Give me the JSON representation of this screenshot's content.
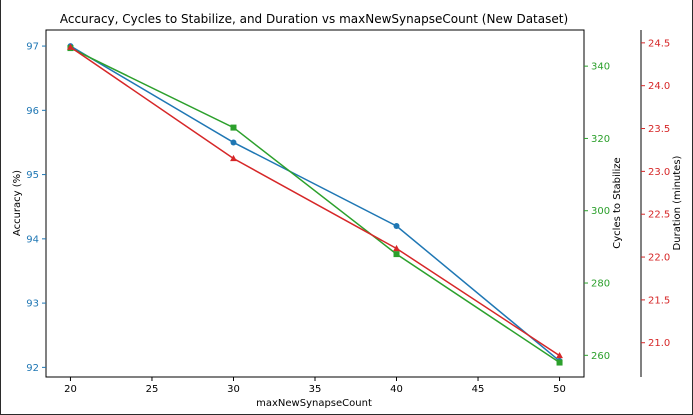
{
  "chart_data": {
    "type": "line",
    "title": "Accuracy, Cycles to Stabilize, and Duration vs maxNewSynapseCount (New Dataset)",
    "xlabel": "maxNewSynapseCount",
    "x": [
      20,
      30,
      40,
      50
    ],
    "xlim": [
      18.5,
      51.5
    ],
    "xticks": [
      20,
      25,
      30,
      35,
      40,
      45,
      50
    ],
    "grid": false,
    "legend": "none",
    "axes": [
      {
        "id": "accuracy",
        "label": "Accuracy (%)",
        "side": "left",
        "color": "#1f77b4",
        "ylim": [
          91.85,
          97.25
        ],
        "ticks": [
          92,
          93,
          94,
          95,
          96,
          97
        ],
        "marker": "circle",
        "values": [
          97.0,
          95.5,
          94.2,
          92.1
        ]
      },
      {
        "id": "cycles",
        "label": "Cycles to Stabilize",
        "side": "right",
        "color": "#2ca02c",
        "ylim": [
          254.0,
          350.0
        ],
        "ticks": [
          260,
          280,
          300,
          320,
          340
        ],
        "marker": "square",
        "values": [
          345,
          323,
          288,
          258
        ]
      },
      {
        "id": "duration",
        "label": "Duration (minutes)",
        "side": "right-outer",
        "color": "#d62728",
        "ylim": [
          20.6,
          24.65
        ],
        "ticks": [
          "21.0",
          "21.5",
          "22.0",
          "22.5",
          "23.0",
          "23.5",
          "24.0",
          "24.5"
        ],
        "marker": "triangle",
        "values": [
          24.45,
          23.15,
          22.1,
          20.85
        ]
      }
    ]
  }
}
